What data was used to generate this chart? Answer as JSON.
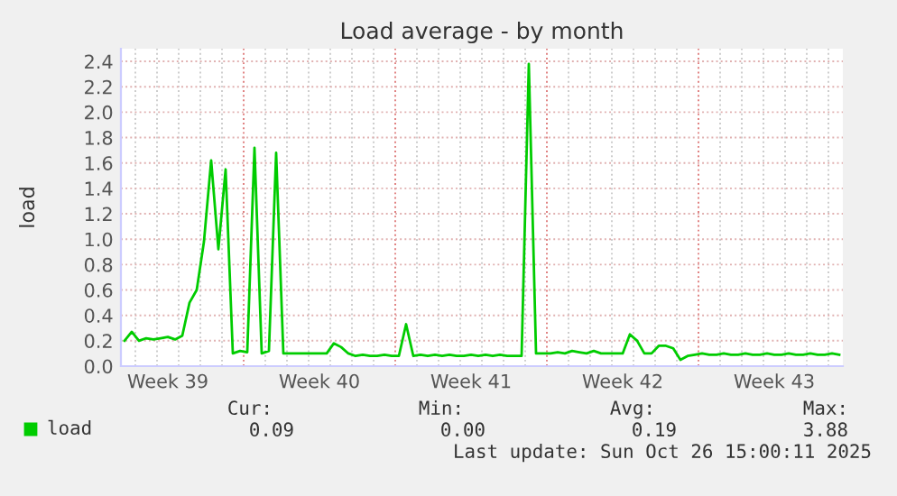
{
  "chart_data": {
    "type": "line",
    "title": "Load average - by month",
    "ylabel": "load",
    "categories": [
      null,
      null,
      null,
      null,
      null,
      null,
      "Week 39",
      null,
      null,
      null,
      null,
      null,
      null,
      null,
      null,
      null,
      null,
      null,
      null,
      null,
      null,
      null,
      null,
      null,
      null,
      null,
      null,
      "Week 40",
      null,
      null,
      null,
      null,
      null,
      null,
      null,
      null,
      null,
      null,
      null,
      null,
      null,
      null,
      null,
      null,
      null,
      null,
      null,
      null,
      "Week 41",
      null,
      null,
      null,
      null,
      null,
      null,
      null,
      null,
      null,
      null,
      null,
      null,
      null,
      null,
      null,
      null,
      null,
      null,
      null,
      null,
      "Week 42",
      null,
      null,
      null,
      null,
      null,
      null,
      null,
      null,
      null,
      null,
      null,
      null,
      null,
      null,
      null,
      null,
      null,
      null,
      null,
      null,
      "Week 43",
      null,
      null,
      null,
      null,
      null,
      null,
      null,
      null,
      null
    ],
    "series": [
      {
        "name": "load",
        "color": "#00cc00",
        "values": [
          0.2,
          0.27,
          0.2,
          0.22,
          0.21,
          0.22,
          0.23,
          0.21,
          0.24,
          0.5,
          0.6,
          0.98,
          1.62,
          0.92,
          1.55,
          0.1,
          0.12,
          0.11,
          1.72,
          0.1,
          0.12,
          1.68,
          0.1,
          0.1,
          0.1,
          0.1,
          0.1,
          0.1,
          0.1,
          0.18,
          0.15,
          0.1,
          0.08,
          0.09,
          0.08,
          0.08,
          0.09,
          0.08,
          0.08,
          0.33,
          0.08,
          0.09,
          0.08,
          0.09,
          0.08,
          0.09,
          0.08,
          0.08,
          0.09,
          0.08,
          0.09,
          0.08,
          0.09,
          0.08,
          0.08,
          0.08,
          2.38,
          0.1,
          0.1,
          0.1,
          0.11,
          0.1,
          0.12,
          0.11,
          0.1,
          0.12,
          0.1,
          0.1,
          0.1,
          0.1,
          0.25,
          0.2,
          0.1,
          0.1,
          0.16,
          0.16,
          0.14,
          0.05,
          0.08,
          0.09,
          0.1,
          0.09,
          0.09,
          0.1,
          0.09,
          0.09,
          0.1,
          0.09,
          0.09,
          0.1,
          0.09,
          0.09,
          0.1,
          0.09,
          0.09,
          0.1,
          0.09,
          0.09,
          0.1,
          0.09
        ]
      }
    ],
    "ylim": [
      0,
      2.5
    ],
    "yticks": [
      {
        "value": 0,
        "label": "0.0"
      },
      0.2,
      0.4,
      0.6,
      0.8,
      {
        "value": 1,
        "label": "1.0"
      },
      1.2,
      1.4,
      1.6,
      1.8,
      {
        "value": 2,
        "label": "2.0"
      },
      2.2,
      2.4
    ],
    "grid": true,
    "legend": "bottom left",
    "annotations": [
      "Cur:",
      "Min:",
      "Avg:",
      "Max:",
      "0.09",
      "0.00",
      "0.19",
      "3.88",
      "Last update: Sun Oct 26 15:00:11 2025"
    ]
  }
}
